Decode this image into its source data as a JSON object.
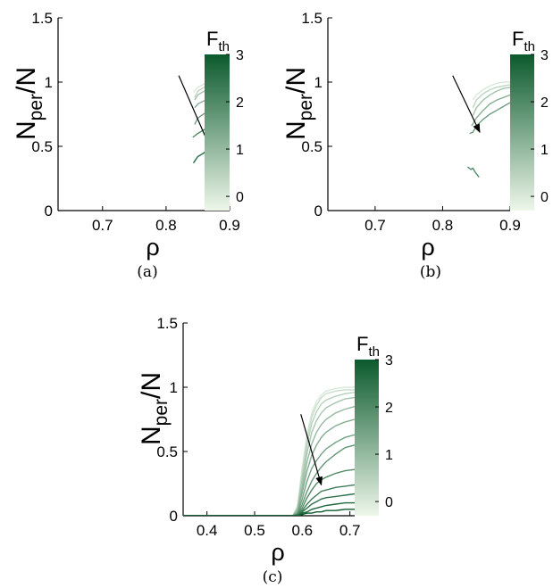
{
  "colors": {
    "cmap_light": "#eef7ea",
    "cmap_dark": "#0b5a2d",
    "axis": "#000000",
    "arrow": "#000000"
  },
  "chart_data": [
    {
      "type": "line",
      "caption": "(a)",
      "xlabel": "ρ",
      "ylabel_main": "N",
      "ylabel_sub": "per",
      "ylabel_tail": "/N",
      "xlim": [
        0.63,
        0.9
      ],
      "ylim": [
        0,
        1.5
      ],
      "xticks": [
        "0.7",
        "0.8",
        "0.9"
      ],
      "xtick_values": [
        0.7,
        0.8,
        0.9
      ],
      "yticks": [
        "0",
        "0.5",
        "1",
        "1.5"
      ],
      "ytick_values": [
        0,
        0.5,
        1,
        1.5
      ],
      "colorbar": {
        "title_main": "F",
        "title_sub": "th",
        "ticks": [
          "0",
          "1",
          "2",
          "3"
        ],
        "tick_values": [
          0,
          1,
          2,
          3
        ],
        "range": [
          -0.3,
          3
        ]
      },
      "arrow": {
        "from": [
          0.82,
          1.05
        ],
        "to": [
          0.872,
          0.46
        ]
      },
      "series": [
        {
          "f": 0.0,
          "x": [
            0.843,
            0.85,
            0.86,
            0.87,
            0.88,
            0.89,
            0.9
          ],
          "y": [
            0.92,
            0.96,
            0.985,
            0.995,
            1.0,
            1.0,
            1.0
          ]
        },
        {
          "f": 0.4,
          "x": [
            0.845,
            0.85,
            0.86,
            0.87,
            0.88,
            0.89,
            0.9
          ],
          "y": [
            0.88,
            0.93,
            0.96,
            0.975,
            0.985,
            0.99,
            0.99
          ]
        },
        {
          "f": 0.8,
          "x": [
            0.845,
            0.85,
            0.86,
            0.87,
            0.88,
            0.89,
            0.9
          ],
          "y": [
            0.86,
            0.9,
            0.93,
            0.945,
            0.955,
            0.96,
            0.96
          ]
        },
        {
          "f": 1.2,
          "x": [
            0.845,
            0.85,
            0.86,
            0.87,
            0.88,
            0.89,
            0.9
          ],
          "y": [
            0.8,
            0.83,
            0.855,
            0.87,
            0.885,
            0.9,
            0.9
          ]
        },
        {
          "f": 1.6,
          "x": [
            0.845,
            0.85,
            0.86,
            0.87,
            0.88,
            0.89,
            0.9
          ],
          "y": [
            0.67,
            0.72,
            0.755,
            0.78,
            0.795,
            0.805,
            0.81
          ]
        },
        {
          "f": 2.0,
          "x": [
            0.842,
            0.85,
            0.86,
            0.87,
            0.88,
            0.89,
            0.9
          ],
          "y": [
            0.57,
            0.6,
            0.63,
            0.655,
            0.675,
            0.69,
            0.7
          ]
        },
        {
          "f": 2.6,
          "x": [
            0.843,
            0.85,
            0.86,
            0.865,
            0.87,
            0.875,
            0.88,
            0.89,
            0.9
          ],
          "y": [
            0.37,
            0.42,
            0.45,
            0.48,
            0.5,
            0.5,
            0.53,
            0.54,
            0.56
          ]
        }
      ]
    },
    {
      "type": "line",
      "caption": "(b)",
      "xlabel": "ρ",
      "ylabel_main": "N",
      "ylabel_sub": "per",
      "ylabel_tail": "/N",
      "xlim": [
        0.63,
        0.9
      ],
      "ylim": [
        0,
        1.5
      ],
      "xticks": [
        "0.7",
        "0.8",
        "0.9"
      ],
      "xtick_values": [
        0.7,
        0.8,
        0.9
      ],
      "yticks": [
        "0",
        "0.5",
        "1",
        "1.5"
      ],
      "ytick_values": [
        0,
        0.5,
        1,
        1.5
      ],
      "colorbar": {
        "title_main": "F",
        "title_sub": "th",
        "ticks": [
          "0",
          "1",
          "2",
          "3"
        ],
        "tick_values": [
          0,
          1,
          2,
          3
        ],
        "range": [
          -0.3,
          3
        ]
      },
      "arrow": {
        "from": [
          0.815,
          1.05
        ],
        "to": [
          0.855,
          0.61
        ]
      },
      "series": [
        {
          "f": 0.0,
          "x": [
            0.845,
            0.85,
            0.86,
            0.87,
            0.88,
            0.89,
            0.9
          ],
          "y": [
            0.86,
            0.9,
            0.94,
            0.97,
            0.99,
            1.0,
            1.0
          ]
        },
        {
          "f": 0.4,
          "x": [
            0.845,
            0.85,
            0.86,
            0.87,
            0.88,
            0.89,
            0.9
          ],
          "y": [
            0.8,
            0.86,
            0.91,
            0.94,
            0.96,
            0.97,
            0.98
          ]
        },
        {
          "f": 0.8,
          "x": [
            0.845,
            0.85,
            0.86,
            0.87,
            0.88,
            0.89,
            0.9
          ],
          "y": [
            0.74,
            0.8,
            0.86,
            0.9,
            0.93,
            0.95,
            0.96
          ]
        },
        {
          "f": 1.2,
          "x": [
            0.843,
            0.85,
            0.86,
            0.87,
            0.88,
            0.89,
            0.9
          ],
          "y": [
            0.66,
            0.72,
            0.78,
            0.83,
            0.86,
            0.88,
            0.9
          ]
        },
        {
          "f": 1.6,
          "x": [
            0.84,
            0.845,
            0.85,
            0.86,
            0.87,
            0.88,
            0.89,
            0.9
          ],
          "y": [
            0.6,
            0.61,
            0.66,
            0.71,
            0.75,
            0.78,
            0.81,
            0.84
          ]
        },
        {
          "f": 2.0,
          "x": [
            0.837,
            0.842,
            0.845,
            0.848,
            0.851,
            0.854
          ],
          "y": [
            0.34,
            0.32,
            0.33,
            0.3,
            0.28,
            0.26
          ]
        }
      ]
    },
    {
      "type": "line",
      "caption": "(c)",
      "xlabel": "ρ",
      "ylabel_main": "N",
      "ylabel_sub": "per",
      "ylabel_tail": "/N",
      "xlim": [
        0.35,
        0.71
      ],
      "ylim": [
        0,
        1.5
      ],
      "xticks": [
        "0.4",
        "0.5",
        "0.6",
        "0.7"
      ],
      "xtick_values": [
        0.4,
        0.5,
        0.6,
        0.7
      ],
      "yticks": [
        "0",
        "0.5",
        "1",
        "1.5"
      ],
      "ytick_values": [
        0,
        0.5,
        1,
        1.5
      ],
      "colorbar": {
        "title_main": "F",
        "title_sub": "th",
        "ticks": [
          "0",
          "1",
          "2",
          "3"
        ],
        "tick_values": [
          0,
          1,
          2,
          3
        ],
        "range": [
          -0.3,
          3
        ]
      },
      "arrow": {
        "from": [
          0.597,
          0.79
        ],
        "to": [
          0.64,
          0.24
        ]
      },
      "series": [
        {
          "f": 0.0,
          "x": [
            0.35,
            0.58,
            0.59,
            0.6,
            0.61,
            0.62,
            0.63,
            0.64,
            0.65,
            0.67,
            0.69,
            0.71
          ],
          "y": [
            0,
            0,
            0.08,
            0.38,
            0.64,
            0.8,
            0.89,
            0.94,
            0.97,
            0.99,
            1.0,
            1.0
          ]
        },
        {
          "f": 0.25,
          "x": [
            0.35,
            0.58,
            0.59,
            0.6,
            0.61,
            0.62,
            0.63,
            0.64,
            0.65,
            0.67,
            0.69,
            0.71
          ],
          "y": [
            0,
            0,
            0.07,
            0.35,
            0.6,
            0.77,
            0.86,
            0.92,
            0.95,
            0.97,
            0.98,
            0.98
          ]
        },
        {
          "f": 0.5,
          "x": [
            0.35,
            0.58,
            0.59,
            0.6,
            0.61,
            0.62,
            0.63,
            0.64,
            0.65,
            0.67,
            0.69,
            0.71
          ],
          "y": [
            0,
            0,
            0.06,
            0.31,
            0.55,
            0.72,
            0.81,
            0.87,
            0.9,
            0.93,
            0.95,
            0.96
          ]
        },
        {
          "f": 0.75,
          "x": [
            0.35,
            0.58,
            0.59,
            0.6,
            0.61,
            0.62,
            0.63,
            0.64,
            0.65,
            0.67,
            0.69,
            0.71
          ],
          "y": [
            0,
            0,
            0.05,
            0.27,
            0.49,
            0.65,
            0.74,
            0.8,
            0.84,
            0.88,
            0.91,
            0.92
          ]
        },
        {
          "f": 1.0,
          "x": [
            0.35,
            0.58,
            0.59,
            0.6,
            0.61,
            0.62,
            0.63,
            0.64,
            0.65,
            0.67,
            0.69,
            0.71
          ],
          "y": [
            0,
            0,
            0.04,
            0.22,
            0.42,
            0.56,
            0.65,
            0.71,
            0.75,
            0.8,
            0.83,
            0.85
          ]
        },
        {
          "f": 1.25,
          "x": [
            0.35,
            0.58,
            0.59,
            0.6,
            0.61,
            0.62,
            0.63,
            0.64,
            0.65,
            0.67,
            0.69,
            0.71
          ],
          "y": [
            0,
            0,
            0.03,
            0.18,
            0.35,
            0.47,
            0.55,
            0.61,
            0.65,
            0.7,
            0.73,
            0.75
          ]
        },
        {
          "f": 1.5,
          "x": [
            0.35,
            0.58,
            0.59,
            0.6,
            0.61,
            0.62,
            0.63,
            0.64,
            0.65,
            0.67,
            0.69,
            0.71
          ],
          "y": [
            0,
            0,
            0.02,
            0.13,
            0.27,
            0.37,
            0.43,
            0.48,
            0.52,
            0.57,
            0.61,
            0.63
          ]
        },
        {
          "f": 1.75,
          "x": [
            0.35,
            0.58,
            0.59,
            0.6,
            0.61,
            0.62,
            0.63,
            0.64,
            0.65,
            0.67,
            0.69,
            0.71
          ],
          "y": [
            0,
            0,
            0.01,
            0.09,
            0.19,
            0.27,
            0.33,
            0.38,
            0.42,
            0.48,
            0.53,
            0.55
          ]
        },
        {
          "f": 2.0,
          "x": [
            0.35,
            0.58,
            0.59,
            0.6,
            0.61,
            0.62,
            0.63,
            0.64,
            0.65,
            0.67,
            0.69,
            0.71
          ],
          "y": [
            0,
            0,
            0.01,
            0.06,
            0.14,
            0.2,
            0.25,
            0.28,
            0.3,
            0.33,
            0.35,
            0.36
          ]
        },
        {
          "f": 2.25,
          "x": [
            0.35,
            0.58,
            0.59,
            0.6,
            0.61,
            0.62,
            0.63,
            0.64,
            0.65,
            0.67,
            0.69,
            0.71
          ],
          "y": [
            0,
            0,
            0.01,
            0.04,
            0.09,
            0.13,
            0.16,
            0.19,
            0.2,
            0.22,
            0.23,
            0.24
          ]
        },
        {
          "f": 2.5,
          "x": [
            0.35,
            0.58,
            0.59,
            0.6,
            0.61,
            0.62,
            0.63,
            0.64,
            0.65,
            0.67,
            0.69,
            0.71
          ],
          "y": [
            0,
            0,
            0.0,
            0.03,
            0.06,
            0.09,
            0.11,
            0.13,
            0.14,
            0.15,
            0.16,
            0.17
          ]
        },
        {
          "f": 2.75,
          "x": [
            0.35,
            0.58,
            0.59,
            0.6,
            0.61,
            0.62,
            0.63,
            0.64,
            0.65,
            0.67,
            0.69,
            0.71
          ],
          "y": [
            0,
            0,
            0.0,
            0.02,
            0.03,
            0.05,
            0.06,
            0.07,
            0.08,
            0.09,
            0.1,
            0.1
          ]
        },
        {
          "f": 3.0,
          "x": [
            0.35,
            0.58,
            0.59,
            0.6,
            0.61,
            0.62,
            0.63,
            0.64,
            0.65,
            0.67,
            0.69,
            0.71
          ],
          "y": [
            0,
            0,
            0.0,
            0.01,
            0.02,
            0.02,
            0.03,
            0.03,
            0.04,
            0.04,
            0.05,
            0.05
          ]
        }
      ]
    }
  ]
}
